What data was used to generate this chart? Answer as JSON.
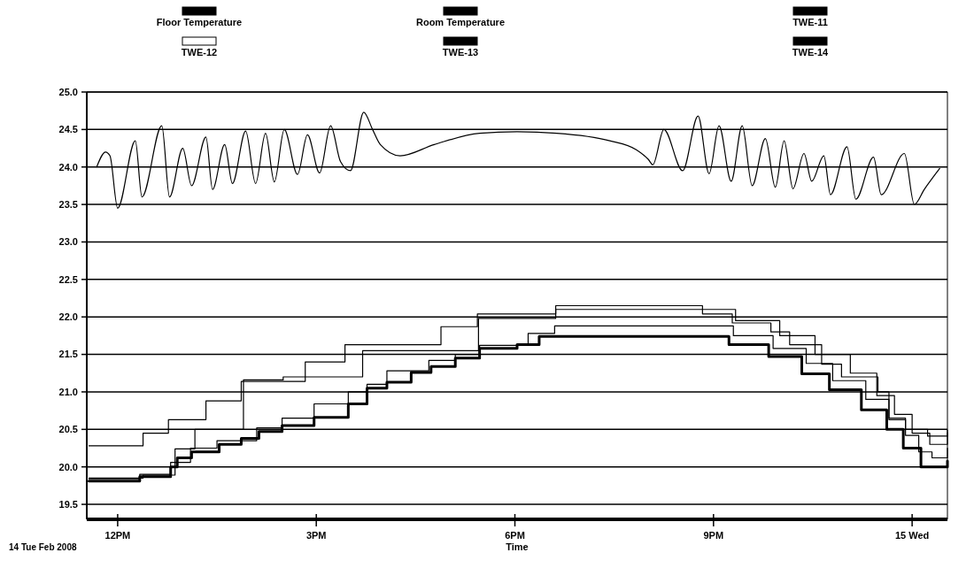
{
  "chart_data": {
    "type": "step",
    "xlabel": "Time",
    "annotations": [
      "14 Tue Feb 2008"
    ],
    "xlim": [
      "2008-02-14T11:32",
      "2008-02-15T00:32"
    ],
    "ylim": [
      19.3,
      25.0
    ],
    "xticks": [
      {
        "value": "2008-02-14T12:00",
        "label": "12PM"
      },
      {
        "value": "2008-02-14T15:00",
        "label": "3PM"
      },
      {
        "value": "2008-02-14T18:00",
        "label": "6PM"
      },
      {
        "value": "2008-02-14T21:00",
        "label": "9PM"
      },
      {
        "value": "2008-02-15T00:00",
        "label": "15 Wed"
      }
    ],
    "yticks": [
      {
        "value": 19.5,
        "label": "19.5"
      },
      {
        "value": 20,
        "label": "20.0"
      },
      {
        "value": 20.5,
        "label": "20.5"
      },
      {
        "value": 21,
        "label": "21.0"
      },
      {
        "value": 21.5,
        "label": "21.5"
      },
      {
        "value": 22,
        "label": "22.0"
      },
      {
        "value": 22.5,
        "label": "22.5"
      },
      {
        "value": 23,
        "label": "23.0"
      },
      {
        "value": 23.5,
        "label": "23.5"
      },
      {
        "value": 24,
        "label": "24.0"
      },
      {
        "value": 24.5,
        "label": "24.5"
      },
      {
        "value": 25,
        "label": "25.0"
      }
    ],
    "grid": "y",
    "legend": "top",
    "line_style": "solid",
    "series": [
      {
        "name": "Floor Temperature",
        "color": "#000000",
        "x": [
          "2008-02-14T11:34",
          "2008-02-14T12:20",
          "2008-02-14T12:48",
          "2008-02-14T12:54",
          "2008-02-14T13:07",
          "2008-02-14T13:32",
          "2008-02-14T13:52",
          "2008-02-14T14:08",
          "2008-02-14T14:29",
          "2008-02-14T14:58",
          "2008-02-14T15:29",
          "2008-02-14T15:46",
          "2008-02-14T16:04",
          "2008-02-14T16:26",
          "2008-02-14T16:44",
          "2008-02-14T17:06",
          "2008-02-14T17:28",
          "2008-02-14T18:02",
          "2008-02-14T18:22",
          "2008-02-14T20:59",
          "2008-02-14T21:14",
          "2008-02-14T21:50",
          "2008-02-14T22:20",
          "2008-02-14T22:45",
          "2008-02-14T23:14",
          "2008-02-14T23:37",
          "2008-02-14T23:52",
          "2008-02-15T00:08",
          "2008-02-15T00:25",
          "2008-02-15T00:32"
        ],
        "values": [
          19.81,
          19.87,
          20.0,
          20.12,
          20.2,
          20.3,
          20.38,
          20.47,
          20.55,
          20.66,
          20.84,
          21.05,
          21.13,
          21.26,
          21.34,
          21.45,
          21.58,
          21.63,
          21.74,
          21.74,
          21.63,
          21.47,
          21.24,
          21.03,
          20.76,
          20.5,
          20.25,
          20.0,
          20.0,
          20.08
        ]
      },
      {
        "name": "Room Temperature",
        "type": "line",
        "color": "#000000",
        "x": [
          "2008-02-14T11:41",
          "2008-02-14T11:49",
          "2008-02-14T11:53",
          "2008-02-14T12:00",
          "2008-02-14T12:16",
          "2008-02-14T12:22",
          "2008-02-14T12:40",
          "2008-02-14T12:47",
          "2008-02-14T12:59",
          "2008-02-14T13:07",
          "2008-02-14T13:20",
          "2008-02-14T13:26",
          "2008-02-14T13:37",
          "2008-02-14T13:44",
          "2008-02-14T13:56",
          "2008-02-14T14:05",
          "2008-02-14T14:14",
          "2008-02-14T14:22",
          "2008-02-14T14:31",
          "2008-02-14T14:43",
          "2008-02-14T14:52",
          "2008-02-14T15:03",
          "2008-02-14T15:13",
          "2008-02-14T15:22",
          "2008-02-14T15:31",
          "2008-02-14T15:43",
          "2008-02-14T15:51",
          "2008-02-14T15:58",
          "2008-02-14T16:16",
          "2008-02-14T16:47",
          "2008-02-14T17:28",
          "2008-02-14T18:02",
          "2008-02-14T18:38",
          "2008-02-14T19:26",
          "2008-02-14T19:50",
          "2008-02-14T20:01",
          "2008-02-14T20:05",
          "2008-02-14T20:15",
          "2008-02-14T20:32",
          "2008-02-14T20:46",
          "2008-02-14T20:56",
          "2008-02-14T21:05",
          "2008-02-14T21:16",
          "2008-02-14T21:26",
          "2008-02-14T21:35",
          "2008-02-14T21:47",
          "2008-02-14T21:56",
          "2008-02-14T22:04",
          "2008-02-14T22:12",
          "2008-02-14T22:22",
          "2008-02-14T22:29",
          "2008-02-14T22:40",
          "2008-02-14T22:46",
          "2008-02-14T23:01",
          "2008-02-14T23:09",
          "2008-02-14T23:25",
          "2008-02-14T23:32",
          "2008-02-14T23:53",
          "2008-02-15T00:02",
          "2008-02-15T00:11",
          "2008-02-15T00:25"
        ],
        "values": [
          24.0,
          24.2,
          24.15,
          23.45,
          24.35,
          23.6,
          24.55,
          23.6,
          24.25,
          23.75,
          24.4,
          23.7,
          24.3,
          23.78,
          24.48,
          23.78,
          24.45,
          23.8,
          24.5,
          23.9,
          24.43,
          23.92,
          24.55,
          24.07,
          23.95,
          24.73,
          24.5,
          24.3,
          24.15,
          24.3,
          24.45,
          24.47,
          24.45,
          24.35,
          24.23,
          24.1,
          24.03,
          24.5,
          23.95,
          24.68,
          23.91,
          24.55,
          23.81,
          24.55,
          23.75,
          24.38,
          23.73,
          24.35,
          23.71,
          24.18,
          23.81,
          24.15,
          23.63,
          24.27,
          23.57,
          24.13,
          23.63,
          24.18,
          23.5,
          23.7,
          23.98
        ]
      },
      {
        "name": "TWE-11",
        "color": "#000000",
        "x": [
          "2008-02-14T11:34",
          "2008-02-14T12:23",
          "2008-02-14T12:46",
          "2008-02-14T13:20",
          "2008-02-14T13:52",
          "2008-02-14T14:50",
          "2008-02-14T15:26",
          "2008-02-14T16:53",
          "2008-02-14T17:26",
          "2008-02-14T18:37",
          "2008-02-14T20:50",
          "2008-02-14T21:17",
          "2008-02-14T21:52",
          "2008-02-14T22:09",
          "2008-02-14T22:38",
          "2008-02-14T22:56",
          "2008-02-14T23:29",
          "2008-02-14T23:39",
          "2008-02-14T23:54",
          "2008-02-15T00:14",
          "2008-02-15T00:32"
        ],
        "values": [
          20.28,
          20.45,
          20.63,
          20.88,
          21.14,
          21.4,
          21.63,
          21.87,
          22.04,
          22.15,
          22.04,
          21.92,
          21.8,
          21.63,
          21.37,
          21.2,
          21.0,
          20.63,
          20.5,
          20.41,
          20.49
        ]
      },
      {
        "name": "TWE-12",
        "color": "#ffffff"
      },
      {
        "name": "TWE-13",
        "color": "#000000",
        "x": [
          "2008-02-14T11:34",
          "2008-02-14T12:23",
          "2008-02-14T12:52",
          "2008-02-14T13:10",
          "2008-02-14T13:54",
          "2008-02-14T14:30",
          "2008-02-14T15:42",
          "2008-02-14T17:27",
          "2008-02-14T18:37",
          "2008-02-14T21:20",
          "2008-02-14T22:00",
          "2008-02-14T22:32",
          "2008-02-14T23:04",
          "2008-02-14T23:28",
          "2008-02-14T23:44",
          "2008-02-15T00:00",
          "2008-02-15T00:16",
          "2008-02-15T00:32"
        ],
        "values": [
          19.85,
          19.89,
          20.24,
          20.5,
          21.16,
          21.2,
          21.55,
          21.98,
          22.1,
          21.95,
          21.75,
          21.5,
          21.25,
          20.95,
          20.7,
          20.45,
          20.3,
          20.45
        ]
      },
      {
        "name": "TWE-14",
        "color": "#000000",
        "x": [
          "2008-02-14T11:34",
          "2008-02-14T12:20",
          "2008-02-14T12:48",
          "2008-02-14T13:06",
          "2008-02-14T13:30",
          "2008-02-14T14:06",
          "2008-02-14T14:29",
          "2008-02-14T14:58",
          "2008-02-14T15:29",
          "2008-02-14T15:46",
          "2008-02-14T16:04",
          "2008-02-14T16:42",
          "2008-02-14T17:06",
          "2008-02-14T17:28",
          "2008-02-14T18:12",
          "2008-02-14T18:36",
          "2008-02-14T21:00",
          "2008-02-14T21:18",
          "2008-02-14T21:54",
          "2008-02-14T22:24",
          "2008-02-14T22:48",
          "2008-02-14T23:18",
          "2008-02-14T23:39",
          "2008-02-14T23:54",
          "2008-02-15T00:06",
          "2008-02-15T00:18",
          "2008-02-15T00:32"
        ],
        "values": [
          19.84,
          19.9,
          20.06,
          20.25,
          20.35,
          20.52,
          20.65,
          20.84,
          21.0,
          21.1,
          21.28,
          21.42,
          21.5,
          21.62,
          21.78,
          21.88,
          21.88,
          21.75,
          21.58,
          21.38,
          21.15,
          20.9,
          20.65,
          20.42,
          20.2,
          20.12,
          20.25
        ]
      }
    ]
  }
}
